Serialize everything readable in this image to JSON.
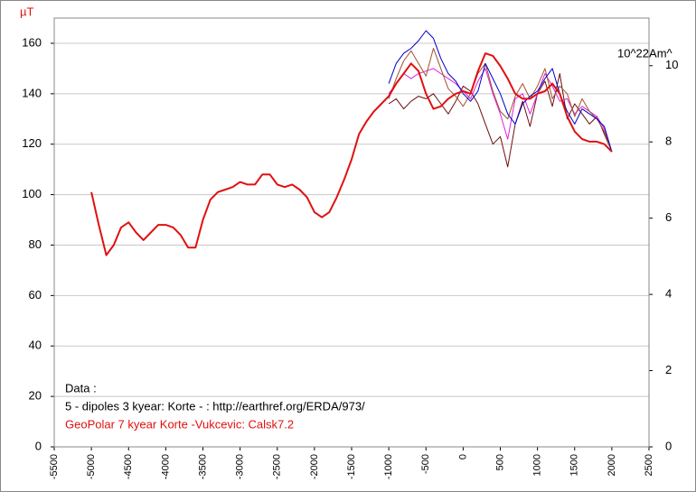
{
  "chart_data": {
    "type": "line",
    "ylabel": "µT",
    "y2label": "10^22Am^",
    "annotations": [
      "Data :",
      "5 - dipoles 3 kyear:  Korte - : http://earthref.org/ERDA/973/"
    ],
    "xlim": [
      -5500,
      2500
    ],
    "xticks": [
      -5500,
      -5000,
      -4500,
      -4000,
      -3500,
      -3000,
      -2500,
      -2000,
      -1500,
      -1000,
      -500,
      0,
      500,
      1000,
      1500,
      2000,
      2500
    ],
    "ylim": [
      0,
      170
    ],
    "yticks": [
      0,
      20,
      40,
      60,
      80,
      100,
      120,
      140,
      160
    ],
    "y2lim": [
      0,
      11.25
    ],
    "y2ticks": [
      0,
      2,
      4,
      6,
      8,
      10
    ],
    "grid": true,
    "series": [
      {
        "name": "GeoPolar 7 kyear   Korte -Vukcevic: Calsk7.2",
        "color": "#e01010",
        "x": [
          -5000,
          -4900,
          -4800,
          -4700,
          -4600,
          -4500,
          -4400,
          -4300,
          -4200,
          -4100,
          -4000,
          -3900,
          -3800,
          -3700,
          -3600,
          -3500,
          -3400,
          -3300,
          -3200,
          -3100,
          -3000,
          -2900,
          -2800,
          -2700,
          -2600,
          -2500,
          -2400,
          -2300,
          -2200,
          -2100,
          -2000,
          -1900,
          -1800,
          -1700,
          -1600,
          -1500,
          -1400,
          -1300,
          -1200,
          -1100,
          -1000,
          -900,
          -800,
          -700,
          -600,
          -500,
          -400,
          -300,
          -200,
          -100,
          0,
          100,
          200,
          300,
          400,
          500,
          600,
          700,
          800,
          900,
          1000,
          1100,
          1200,
          1300,
          1400,
          1500,
          1600,
          1700,
          1800,
          1900,
          2000
        ],
        "values": [
          101,
          88,
          76,
          80,
          87,
          89,
          85,
          82,
          85,
          88,
          88,
          87,
          84,
          79,
          79,
          90,
          98,
          101,
          102,
          103,
          105,
          104,
          104,
          108,
          108,
          104,
          103,
          104,
          102,
          99,
          93,
          91,
          93,
          99,
          106,
          114,
          124,
          129,
          133,
          136,
          139,
          144,
          148,
          152,
          149,
          140,
          134,
          135,
          138,
          140,
          141,
          140,
          149,
          156,
          155,
          151,
          146,
          140,
          138,
          138,
          140,
          141,
          144,
          140,
          131,
          125,
          122,
          121,
          121,
          120,
          117
        ]
      },
      {
        "color": "#0000cc",
        "x": [
          -1000,
          -900,
          -800,
          -700,
          -600,
          -500,
          -400,
          -300,
          -200,
          -100,
          0,
          100,
          200,
          300,
          400,
          500,
          600,
          700,
          800,
          900,
          1000,
          1100,
          1200,
          1300,
          1400,
          1500,
          1600,
          1700,
          1800,
          1900,
          2000
        ],
        "values": [
          144,
          152,
          156,
          158,
          161,
          165,
          162,
          154,
          148,
          145,
          140,
          137,
          141,
          152,
          146,
          140,
          132,
          128,
          136,
          139,
          141,
          146,
          150,
          140,
          133,
          128,
          134,
          132,
          130,
          127,
          117
        ]
      },
      {
        "color": "#a0522d",
        "x": [
          -1000,
          -900,
          -800,
          -700,
          -600,
          -500,
          -400,
          -300,
          -200,
          -100,
          0,
          100,
          200,
          300,
          400,
          500,
          600,
          700,
          800,
          900,
          1000,
          1100,
          1200,
          1300,
          1400,
          1500,
          1600,
          1700,
          1800,
          1900,
          2000
        ],
        "values": [
          138,
          146,
          153,
          157,
          152,
          147,
          158,
          150,
          142,
          139,
          135,
          140,
          148,
          152,
          141,
          133,
          130,
          139,
          144,
          138,
          143,
          150,
          138,
          143,
          140,
          131,
          138,
          133,
          130,
          125,
          117
        ]
      },
      {
        "color": "#dd22dd",
        "x": [
          -1000,
          -900,
          -800,
          -700,
          -600,
          -500,
          -400,
          -300,
          -200,
          -100,
          0,
          100,
          200,
          300,
          400,
          500,
          600,
          700,
          800,
          900,
          1000,
          1100,
          1200,
          1300,
          1400,
          1500,
          1600,
          1700,
          1800,
          1900,
          2000
        ],
        "values": [
          140,
          144,
          148,
          146,
          148,
          149,
          150,
          148,
          146,
          144,
          141,
          138,
          145,
          150,
          140,
          132,
          122,
          138,
          140,
          132,
          140,
          148,
          143,
          137,
          138,
          132,
          135,
          133,
          131,
          126,
          117
        ]
      },
      {
        "color": "#6b0f0f",
        "x": [
          -1000,
          -900,
          -800,
          -700,
          -600,
          -500,
          -400,
          -300,
          -200,
          -100,
          0,
          100,
          200,
          300,
          400,
          500,
          600,
          700,
          800,
          900,
          1000,
          1100,
          1200,
          1300,
          1400,
          1500,
          1600,
          1700,
          1800,
          1900,
          2000
        ],
        "values": [
          136,
          138,
          134,
          137,
          139,
          138,
          140,
          136,
          132,
          137,
          143,
          141,
          136,
          128,
          120,
          123,
          111,
          128,
          137,
          127,
          140,
          145,
          135,
          148,
          130,
          136,
          132,
          128,
          131,
          124,
          117
        ]
      }
    ]
  }
}
